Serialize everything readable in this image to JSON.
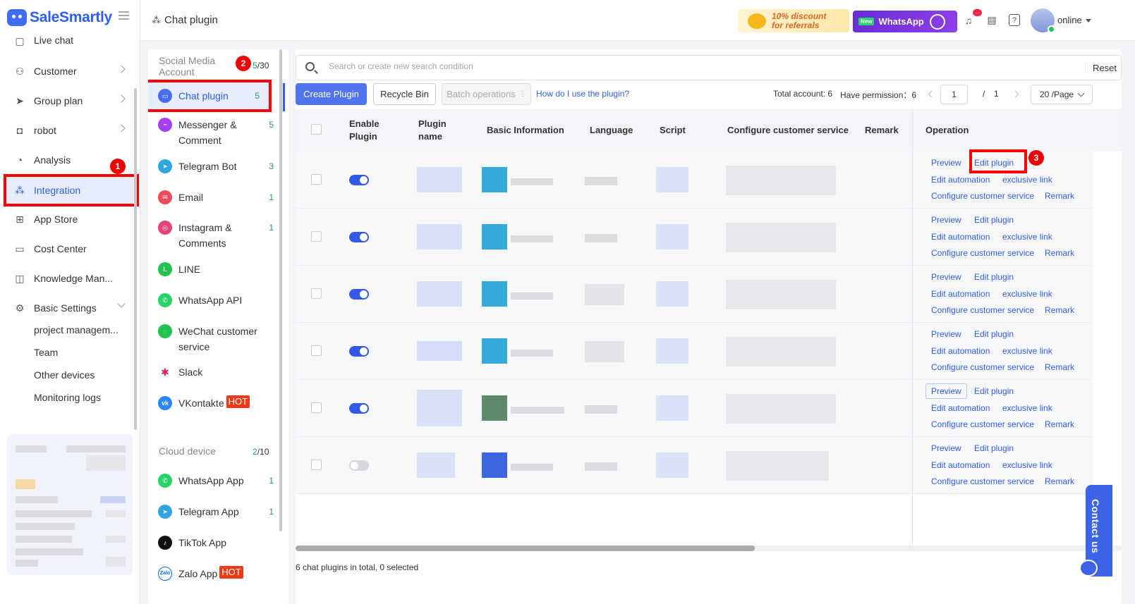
{
  "app": {
    "name": "SaleSmartly"
  },
  "header": {
    "title": "Chat plugin",
    "referral_line1": "10% discount",
    "referral_line2": "for referrals",
    "whatsapp_new": "New",
    "whatsapp_label": "WhatsApp",
    "bell_badge": "...",
    "status": "online"
  },
  "sidebar": {
    "items": [
      {
        "label": "Live chat",
        "icon": "chat-icon"
      },
      {
        "label": "Customer",
        "icon": "users-icon"
      },
      {
        "label": "Group plan",
        "icon": "send-icon"
      },
      {
        "label": "robot",
        "icon": "robot-icon"
      },
      {
        "label": "Analysis",
        "icon": "chart-icon"
      },
      {
        "label": "Integration",
        "icon": "integration-icon"
      },
      {
        "label": "App Store",
        "icon": "grid-icon"
      },
      {
        "label": "Cost Center",
        "icon": "wallet-icon"
      },
      {
        "label": "Knowledge Man...",
        "icon": "book-icon"
      },
      {
        "label": "Basic Settings",
        "icon": "gear-icon"
      }
    ],
    "sub_items": [
      "project managem...",
      "Team",
      "Other devices",
      "Monitoring logs"
    ],
    "step1": "1"
  },
  "channels": {
    "social_title": "Social Media Account",
    "social_used": "5",
    "social_total": "/30",
    "step2": "2",
    "social": [
      {
        "label": "Chat plugin",
        "count": "5",
        "color": "#4a6cf0"
      },
      {
        "label": "Messenger & Comment",
        "count": "5",
        "color": "#a440f0"
      },
      {
        "label": "Telegram Bot",
        "count": "3",
        "color": "#2ea6e0"
      },
      {
        "label": "Email",
        "count": "1",
        "color": "#f04a5a"
      },
      {
        "label": "Instagram & Comments",
        "count": "1",
        "color": "#e8407a"
      },
      {
        "label": "LINE",
        "count": "",
        "color": "#21c24e"
      },
      {
        "label": "WhatsApp API",
        "count": "",
        "color": "#25d366"
      },
      {
        "label": "WeChat customer service",
        "count": "",
        "color": "#21c24e"
      },
      {
        "label": "Slack",
        "count": "",
        "color": "#e01e5a"
      },
      {
        "label": "VKontakte",
        "count": "",
        "color": "#2787f5",
        "hot": "HOT"
      }
    ],
    "cloud_title": "Cloud device",
    "cloud_used": "2",
    "cloud_total": "/10",
    "cloud": [
      {
        "label": "WhatsApp App",
        "count": "1",
        "color": "#25d366"
      },
      {
        "label": "Telegram App",
        "count": "1",
        "color": "#2ea6e0"
      },
      {
        "label": "TikTok App",
        "count": "",
        "color": "#111111"
      },
      {
        "label": "Zalo App",
        "count": "",
        "color": "#0068ff",
        "hot": "HOT"
      }
    ]
  },
  "toolbar": {
    "search_placeholder": "Search or create new search condition",
    "reset": "Reset",
    "create": "Create Plugin",
    "recycle": "Recycle Bin",
    "batch": "Batch operations",
    "help": "How do I use the plugin?",
    "total_account": "Total account: 6",
    "have_permission": "Have permission：6",
    "page": "1",
    "page_sep": "/",
    "page_total": "1",
    "page_size": "20 /Page"
  },
  "table": {
    "headers": {
      "enable": "Enable Plugin",
      "name": "Plugin name",
      "basic": "Basic Information",
      "language": "Language",
      "script": "Script",
      "configure": "Configure customer service",
      "remark": "Remark",
      "operation": "Operation"
    },
    "rows": [
      {
        "enabled": true
      },
      {
        "enabled": true
      },
      {
        "enabled": true
      },
      {
        "enabled": true
      },
      {
        "enabled": true
      },
      {
        "enabled": false
      }
    ],
    "ops": {
      "preview": "Preview",
      "edit_plugin": "Edit plugin",
      "edit_automation": "Edit automation",
      "exclusive_link": "exclusive link",
      "configure": "Configure customer service",
      "remark": "Remark"
    },
    "step3": "3"
  },
  "footer": {
    "summary": "6 chat plugins in total, 0 selected"
  },
  "contact": {
    "label": "Contact us"
  }
}
